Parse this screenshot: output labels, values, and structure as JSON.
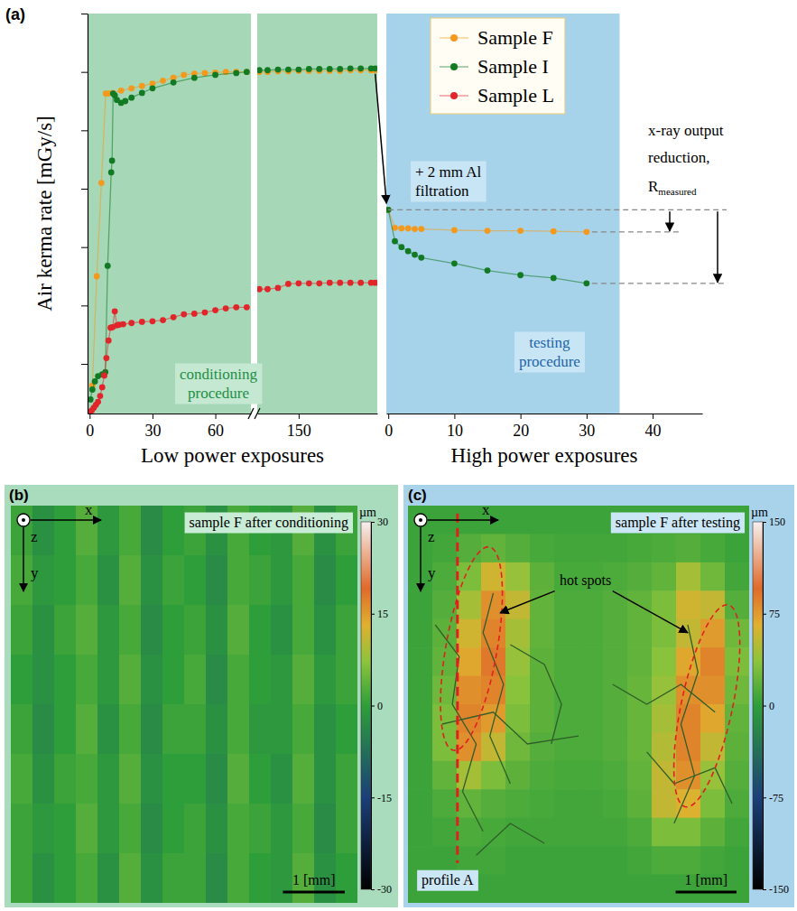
{
  "chart_data": [
    {
      "type": "line",
      "panel": "(a)",
      "y_label": "Air kerma rate [mGy/s]",
      "xlim": [
        -1,
        77
      ],
      "xticks": [
        0,
        30,
        60
      ],
      "ylim": [
        0.15,
        7
      ],
      "yticks": [
        1,
        2,
        3,
        4,
        5,
        6,
        7
      ],
      "tick_labels": "x",
      "legend": "upper right",
      "marker": "circle",
      "band": {
        "label": "conditioning procedure",
        "range": [
          -1,
          77
        ]
      },
      "series": [
        {
          "name": "Sample F",
          "color": "#f39a1e",
          "x": [
            1.3,
            3.4,
            5.6,
            7.7,
            9,
            11,
            15,
            20,
            25,
            30,
            35,
            40,
            45,
            50,
            55,
            60,
            65,
            70,
            75
          ],
          "values": [
            0.63,
            2.5,
            4.1,
            5.63,
            5.63,
            5.64,
            5.68,
            5.72,
            5.76,
            5.8,
            5.85,
            5.9,
            5.95,
            5.97,
            5.98,
            5.99,
            6.0,
            6.0,
            6.0
          ]
        },
        {
          "name": "Sample I",
          "color": "#137a24",
          "x": [
            0.4,
            1.3,
            2.5,
            4,
            6,
            7.5,
            8.6,
            10.3,
            10.7,
            11.2,
            12,
            13,
            15,
            17,
            20,
            25,
            30,
            40,
            50,
            60,
            70,
            75
          ],
          "values": [
            0.39,
            0.56,
            0.7,
            0.79,
            0.82,
            0.86,
            2.68,
            4.28,
            4.48,
            5.63,
            5.6,
            5.52,
            5.47,
            5.5,
            5.56,
            5.64,
            5.72,
            5.82,
            5.9,
            5.95,
            5.98,
            6.0
          ]
        },
        {
          "name": "Sample L",
          "color": "#e0262b",
          "x": [
            0.2,
            1,
            2,
            3,
            4,
            5,
            6,
            7,
            8,
            9,
            10,
            11,
            12,
            13,
            14,
            16,
            20,
            25,
            30,
            35,
            40,
            45,
            50,
            55,
            60,
            65,
            70,
            75
          ],
          "values": [
            0.18,
            0.2,
            0.25,
            0.3,
            0.35,
            0.45,
            0.6,
            0.8,
            1.1,
            1.4,
            1.62,
            1.63,
            1.9,
            1.66,
            1.67,
            1.68,
            1.7,
            1.72,
            1.73,
            1.75,
            1.8,
            1.85,
            1.86,
            1.88,
            1.92,
            1.95,
            1.97,
            1.97
          ]
        }
      ]
    },
    {
      "type": "line",
      "x_label": "Low power exposures",
      "xlim": [
        130,
        188
      ],
      "xticks": [
        150
      ],
      "ylim": [
        0.15,
        7
      ],
      "tick_labels": "x",
      "marker": "circle",
      "band": {
        "range": [
          130,
          188
        ]
      },
      "series": [
        {
          "name": "Sample F",
          "color": "#f39a1e",
          "x": [
            131,
            135,
            140,
            145,
            150,
            155,
            160,
            165,
            170,
            175,
            180,
            185,
            187
          ],
          "values": [
            6.0,
            6.0,
            6.01,
            6.01,
            6.02,
            6.02,
            6.02,
            6.02,
            6.02,
            6.03,
            6.03,
            6.03,
            6.03
          ]
        },
        {
          "name": "Sample I",
          "color": "#137a24",
          "x": [
            131,
            135,
            140,
            145,
            150,
            155,
            160,
            165,
            170,
            175,
            180,
            185,
            187
          ],
          "values": [
            6.03,
            6.03,
            6.04,
            6.04,
            6.04,
            6.05,
            6.05,
            6.05,
            6.05,
            6.06,
            6.06,
            6.06,
            6.06
          ]
        },
        {
          "name": "Sample L",
          "color": "#e0262b",
          "x": [
            131,
            135,
            140,
            145,
            150,
            155,
            160,
            165,
            170,
            175,
            180,
            185,
            187
          ],
          "values": [
            2.28,
            2.28,
            2.3,
            2.37,
            2.38,
            2.38,
            2.38,
            2.39,
            2.39,
            2.39,
            2.39,
            2.39,
            2.39
          ]
        }
      ]
    },
    {
      "type": "line",
      "x_label": "High power exposures",
      "xlim": [
        -0.3,
        47.5
      ],
      "xticks": [
        0,
        10,
        20,
        30,
        40
      ],
      "ylim": [
        0.15,
        7
      ],
      "tick_labels": "x",
      "marker": "circle",
      "band": {
        "label": "testing procedure",
        "range": [
          -0.3,
          35
        ]
      },
      "annotations": {
        "filtration": "+ 2 mm Al filtration",
        "reduction": "x-ray output reduction,",
        "reduction_symbol": "R",
        "reduction_subscript": "measured"
      },
      "series": [
        {
          "name": "Sample F",
          "color": "#f39a1e",
          "x": [
            0,
            1,
            2,
            3,
            4,
            5,
            10,
            15,
            20,
            25,
            30
          ],
          "values": [
            3.64,
            3.33,
            3.32,
            3.32,
            3.31,
            3.31,
            3.29,
            3.28,
            3.28,
            3.27,
            3.26
          ]
        },
        {
          "name": "Sample I",
          "color": "#137a24",
          "x": [
            0,
            1,
            2,
            3,
            4,
            5,
            10,
            15,
            20,
            25,
            30
          ],
          "values": [
            3.64,
            3.1,
            3.0,
            2.93,
            2.87,
            2.82,
            2.72,
            2.6,
            2.52,
            2.47,
            2.38
          ]
        }
      ]
    },
    {
      "type": "heatmap",
      "panel": "(b)",
      "title": "sample F after conditioning",
      "axis_labels": {
        "x": "x",
        "y": "y",
        "z": "z"
      },
      "xlim": [
        0,
        5.6
      ],
      "ylim": [
        0,
        6.4
      ],
      "tick_labels": false,
      "scale_bar": {
        "length": 1,
        "label": "1 [mm]"
      },
      "colorbar": {
        "label": "µm",
        "range": [
          -30,
          30
        ],
        "ticks": [
          30,
          15,
          0,
          -15,
          -30
        ]
      },
      "cells": [
        [
          1,
          -2,
          0,
          3,
          -1,
          2,
          -3,
          0,
          1,
          -2,
          2,
          0,
          -1,
          3,
          -2,
          1
        ],
        [
          2,
          -1,
          0,
          2,
          -2,
          3,
          -2,
          1,
          0,
          -3,
          2,
          1,
          -1,
          2,
          -3,
          0
        ],
        [
          1,
          -2,
          1,
          3,
          -1,
          2,
          -3,
          0,
          1,
          -2,
          3,
          0,
          -2,
          2,
          -2,
          1
        ],
        [
          0,
          -2,
          0,
          2,
          -1,
          3,
          -2,
          0,
          2,
          -3,
          2,
          0,
          -1,
          3,
          -1,
          1
        ],
        [
          1,
          -3,
          0,
          3,
          -2,
          2,
          -3,
          1,
          1,
          -2,
          2,
          -1,
          -1,
          2,
          -2,
          0
        ],
        [
          2,
          -2,
          1,
          2,
          -1,
          3,
          -2,
          0,
          0,
          -3,
          3,
          0,
          -2,
          3,
          -2,
          1
        ],
        [
          1,
          -1,
          0,
          3,
          -1,
          2,
          -3,
          0,
          1,
          -2,
          2,
          1,
          -1,
          2,
          -3,
          1
        ],
        [
          1,
          -2,
          0,
          2,
          -2,
          3,
          -2,
          1,
          1,
          -3,
          2,
          0,
          -1,
          3,
          -2,
          0
        ]
      ]
    },
    {
      "type": "heatmap",
      "panel": "(c)",
      "title": "sample F after testing",
      "axis_labels": {
        "x": "x",
        "y": "y",
        "z": "z"
      },
      "xlim": [
        0,
        5.6
      ],
      "ylim": [
        0,
        6.4
      ],
      "tick_labels": false,
      "scale_bar": {
        "length": 1,
        "label": "1 [mm]"
      },
      "colorbar": {
        "label": "µm",
        "range": [
          -150,
          150
        ],
        "ticks": [
          150,
          75,
          0,
          -75,
          -150
        ]
      },
      "annotations": {
        "hot_spots": "hot spots",
        "profile": "profile A"
      },
      "cells": [
        [
          5,
          5,
          5,
          5,
          5,
          5,
          5,
          5,
          5,
          5,
          5,
          5,
          5,
          5
        ],
        [
          5,
          8,
          15,
          20,
          15,
          10,
          8,
          8,
          8,
          10,
          12,
          15,
          10,
          5
        ],
        [
          5,
          12,
          30,
          60,
          40,
          18,
          10,
          10,
          12,
          15,
          20,
          45,
          25,
          8
        ],
        [
          5,
          15,
          45,
          80,
          55,
          20,
          12,
          12,
          15,
          20,
          30,
          60,
          55,
          15
        ],
        [
          5,
          18,
          60,
          85,
          45,
          20,
          12,
          12,
          15,
          20,
          30,
          55,
          75,
          25
        ],
        [
          5,
          20,
          70,
          90,
          40,
          18,
          12,
          12,
          15,
          20,
          35,
          70,
          85,
          30
        ],
        [
          5,
          25,
          80,
          85,
          35,
          18,
          12,
          12,
          15,
          22,
          40,
          80,
          80,
          25
        ],
        [
          5,
          30,
          85,
          75,
          30,
          18,
          12,
          12,
          15,
          22,
          45,
          85,
          70,
          20
        ],
        [
          5,
          30,
          80,
          55,
          25,
          15,
          12,
          12,
          15,
          22,
          50,
          85,
          55,
          18
        ],
        [
          5,
          20,
          45,
          30,
          18,
          12,
          10,
          10,
          12,
          20,
          55,
          80,
          40,
          15
        ],
        [
          5,
          12,
          20,
          15,
          12,
          10,
          8,
          8,
          10,
          18,
          55,
          65,
          30,
          12
        ],
        [
          5,
          8,
          12,
          10,
          8,
          8,
          8,
          8,
          8,
          12,
          30,
          30,
          18,
          8
        ],
        [
          5,
          5,
          8,
          8,
          5,
          5,
          5,
          5,
          5,
          8,
          12,
          12,
          8,
          5
        ],
        [
          5,
          5,
          5,
          5,
          5,
          5,
          5,
          5,
          5,
          5,
          5,
          5,
          5,
          5
        ]
      ]
    }
  ]
}
